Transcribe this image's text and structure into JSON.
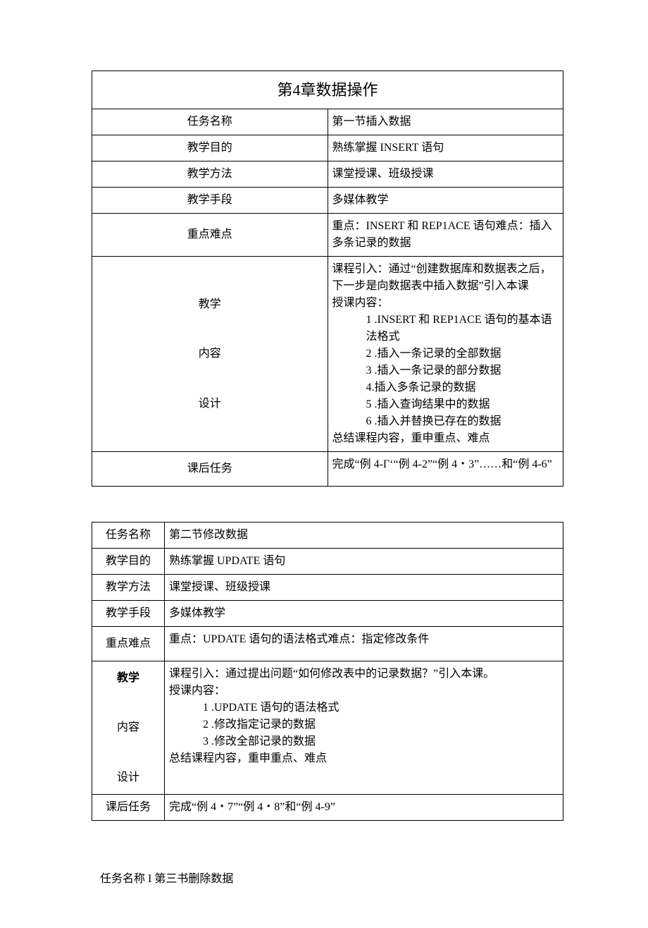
{
  "chapterTitle": "第4章数据操作",
  "table1": {
    "rows": {
      "taskNameLabel": "任务名称",
      "taskNameValue": "第一节插入数据",
      "goalLabel": "教学目的",
      "goalValue": "熟练掌握 INSERT 语句",
      "methodLabel": "教学方法",
      "methodValue": "课堂授课、班级授课",
      "meansLabel": "教学手段",
      "meansValue": "多媒体教学",
      "keyLabel": "重点难点",
      "keyValue": "重点：INSERT 和 REP1ACE 语句难点：插入多条记录的数据"
    },
    "contentLabel1": "教学",
    "contentLabel2": "内容",
    "contentLabel3": "设计",
    "content": {
      "intro": "课程引入：通过“创建数据库和数据表之后，下一步是向数据表中插入数据”引入本课",
      "lectureLabel": "授课内容：",
      "items": [
        "1 .INSERT 和 REP1ACE 语句的基本语法格式",
        "2 .插入一条记录的全部数据",
        "3 .插入一条记录的部分数据",
        "4.插入多条记录的数据",
        "5 .插入查询结果中的数据",
        "6 .插入并替换已存在的数据"
      ],
      "summary": "总结课程内容，重申重点、难点"
    },
    "afterLabel": "课后任务",
    "afterValue": "完成“例 4-Γ‘“例 4-2”“例 4・3”……和“例 4-6”"
  },
  "table2": {
    "rows": {
      "taskNameLabel": "任务名称",
      "taskNameValue": "第二节修改数据",
      "goalLabel": "教学目的",
      "goalValue": "熟练掌握 UPDATE 语句",
      "methodLabel": "教学方法",
      "methodValue": "课堂授课、班级授课",
      "meansLabel": "教学手段",
      "meansValue": "多媒体教学",
      "keyLabel": "重点难点",
      "keyValue": "重点：UPDATE 语句的语法格式难点：指定修改条件"
    },
    "contentLabel1": "教学",
    "contentLabel2": "内容",
    "contentLabel3": "设计",
    "content": {
      "intro": "课程引入：通过提出问题“如何修改表中的记录数据？”引入本课。",
      "lectureLabel": "授课内容：",
      "items": [
        "1 .UPDATE 语句的语法格式",
        "2 .修改指定记录的数据",
        "3 .修改全部记录的数据"
      ],
      "summary": "总结课程内容，重申重点、难点"
    },
    "afterLabel": "课后任务",
    "afterValue": "完成“例 4・7”“例 4・8”和“例 4-9”"
  },
  "looseText": "任务名称 I 第三书删除数据"
}
